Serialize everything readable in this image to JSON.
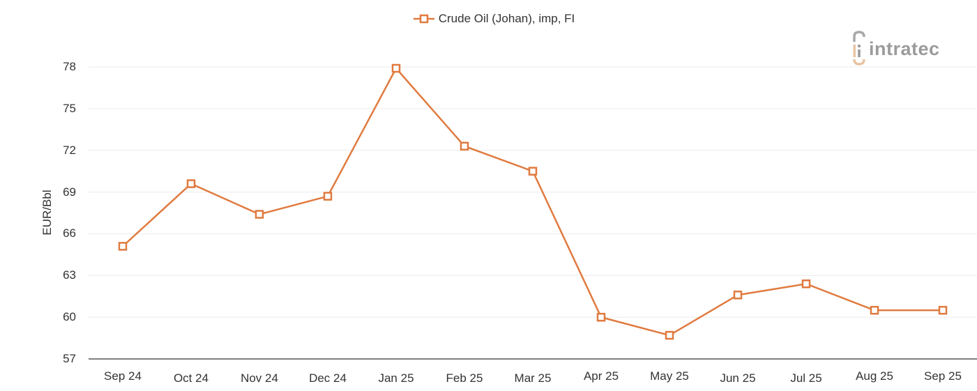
{
  "legend": {
    "label": "Crude Oil (Johan), imp, FI",
    "marker": "hollow-square-line",
    "color": "#E07A3F"
  },
  "logo": {
    "text": "intratec",
    "accent_color": "#E8C4A4",
    "text_color": "#9B9B9B"
  },
  "chart_data": {
    "type": "line",
    "title": "",
    "xlabel": "",
    "ylabel": "EUR/Bbl",
    "categories": [
      "Sep 24",
      "Oct 24",
      "Nov 24",
      "Dec 24",
      "Jan 25",
      "Feb 25",
      "Mar 25",
      "Apr 25",
      "May 25",
      "Jun 25",
      "Jul 25",
      "Aug 25",
      "Sep 25"
    ],
    "series": [
      {
        "name": "Crude Oil (Johan), imp, FI",
        "color": "#E07A3F",
        "marker": "square-hollow",
        "values": [
          65.1,
          69.6,
          67.4,
          68.7,
          77.9,
          72.3,
          70.5,
          60.0,
          58.7,
          61.6,
          62.4,
          60.5,
          60.5
        ]
      }
    ],
    "ylim": [
      57,
      78
    ],
    "yticks": [
      57,
      60,
      63,
      66,
      69,
      72,
      75,
      78
    ],
    "grid": true,
    "legend_position": "top-center"
  }
}
